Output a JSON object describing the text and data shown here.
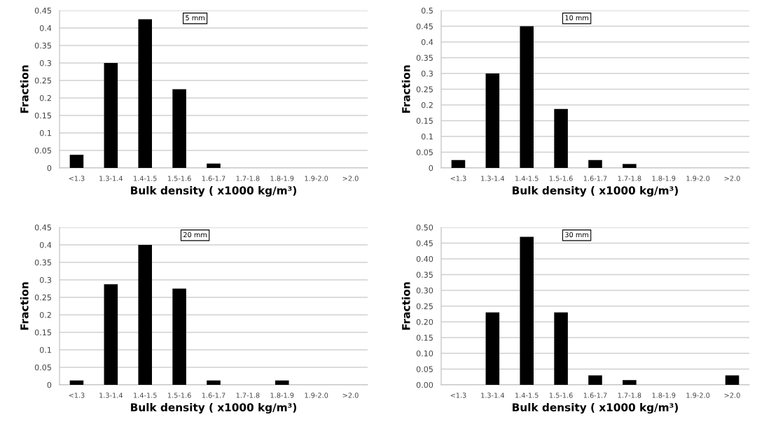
{
  "chart_data": [
    {
      "type": "bar",
      "categories": [
        "<1.3",
        "1.3-1.4",
        "1.4-1.5",
        "1.5-1.6",
        "1.6-1.7",
        "1.7-1.8",
        "1.8-1.9",
        "1.9-2.0",
        ">2.0"
      ],
      "values": [
        0.0375,
        0.3,
        0.425,
        0.225,
        0.0125,
        0,
        0,
        0,
        0
      ],
      "color": "#000000",
      "xlabel": "Bulk density ( x1000 kg/m³)",
      "ylabel": "Fraction",
      "annotations": [
        "5 mm"
      ],
      "ylim": [
        0,
        0.45
      ],
      "yticks": [
        0,
        0.05,
        0.1,
        0.15,
        0.2,
        0.25,
        0.3,
        0.35,
        0.4,
        0.45
      ],
      "grid": "y"
    },
    {
      "type": "bar",
      "categories": [
        "<1.3",
        "1.3-1.4",
        "1.4-1.5",
        "1.5-1.6",
        "1.6-1.7",
        "1.7-1.8",
        "1.8-1.9",
        "1.9-2.0",
        ">2.0"
      ],
      "values": [
        0.025,
        0.3,
        0.45,
        0.1875,
        0.025,
        0.0125,
        0,
        0,
        0
      ],
      "color": "#000000",
      "xlabel": "Bulk density ( x1000 kg/m³)",
      "ylabel": "Fraction",
      "annotations": [
        "10 mm"
      ],
      "ylim": [
        0,
        0.5
      ],
      "yticks": [
        0,
        0.05,
        0.1,
        0.15,
        0.2,
        0.25,
        0.3,
        0.35,
        0.4,
        0.45,
        0.5
      ],
      "grid": "y"
    },
    {
      "type": "bar",
      "categories": [
        "<1.3",
        "1.3-1.4",
        "1.4-1.5",
        "1.5-1.6",
        "1.6-1.7",
        "1.7-1.8",
        "1.8-1.9",
        "1.9-2.0",
        ">2.0"
      ],
      "values": [
        0.0125,
        0.2875,
        0.4,
        0.275,
        0.0125,
        0,
        0.0125,
        0,
        0
      ],
      "color": "#000000",
      "xlabel": "Bulk density ( x1000 kg/m³)",
      "ylabel": "Fraction",
      "annotations": [
        "20 mm"
      ],
      "ylim": [
        0,
        0.45
      ],
      "yticks": [
        0,
        0.05,
        0.1,
        0.15,
        0.2,
        0.25,
        0.3,
        0.35,
        0.4,
        0.45
      ],
      "grid": "y"
    },
    {
      "type": "bar",
      "categories": [
        "<1.3",
        "1.3-1.4",
        "1.4-1.5",
        "1.5-1.6",
        "1.6-1.7",
        "1.7-1.8",
        "1.8-1.9",
        "1.9-2.0",
        ">2.0"
      ],
      "values": [
        0,
        0.23,
        0.47,
        0.23,
        0.03,
        0.015,
        0,
        0,
        0.03
      ],
      "color": "#000000",
      "xlabel": "Bulk density ( x1000 kg/m³)",
      "ylabel": "Fraction",
      "annotations": [
        "30 mm"
      ],
      "ylim": [
        0,
        0.5
      ],
      "yticks": [
        {
          "value": 0,
          "label": "0.00"
        },
        {
          "value": 0.05,
          "label": "0.05"
        },
        {
          "value": 0.1,
          "label": "0.10"
        },
        {
          "value": 0.15,
          "label": "0.15"
        },
        {
          "value": 0.2,
          "label": "0.20"
        },
        {
          "value": 0.25,
          "label": "0.25"
        },
        {
          "value": 0.3,
          "label": "0.30"
        },
        {
          "value": 0.35,
          "label": "0.35"
        },
        {
          "value": 0.4,
          "label": "0.40"
        },
        {
          "value": 0.45,
          "label": "0.45"
        },
        {
          "value": 0.5,
          "label": "0.50"
        }
      ],
      "grid": "y"
    }
  ]
}
